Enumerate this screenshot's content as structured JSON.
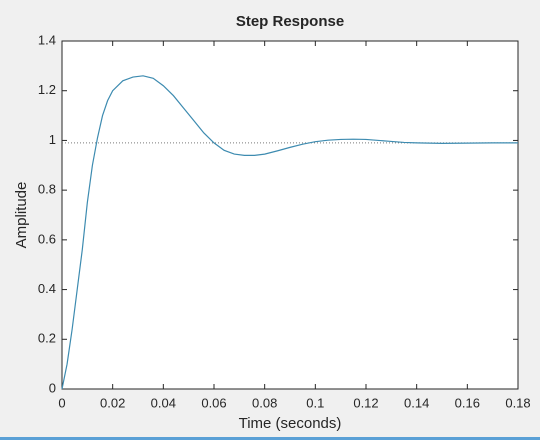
{
  "chart_data": {
    "type": "line",
    "title": "Step Response",
    "x_label": "Time (seconds)",
    "y_label": "Amplitude",
    "x": [
      0,
      0.002,
      0.004,
      0.006,
      0.008,
      0.01,
      0.012,
      0.014,
      0.016,
      0.018,
      0.02,
      0.024,
      0.028,
      0.032,
      0.036,
      0.04,
      0.044,
      0.048,
      0.052,
      0.056,
      0.06,
      0.064,
      0.068,
      0.072,
      0.076,
      0.08,
      0.085,
      0.09,
      0.095,
      0.1,
      0.105,
      0.11,
      0.115,
      0.12,
      0.125,
      0.13,
      0.135,
      0.14,
      0.15,
      0.16,
      0.17,
      0.18
    ],
    "series": [
      {
        "color": "#3d8bb0",
        "values": [
          0,
          0.1,
          0.24,
          0.4,
          0.56,
          0.75,
          0.9,
          1.01,
          1.1,
          1.16,
          1.2,
          1.24,
          1.255,
          1.26,
          1.25,
          1.22,
          1.18,
          1.13,
          1.08,
          1.03,
          0.99,
          0.96,
          0.945,
          0.94,
          0.94,
          0.945,
          0.958,
          0.972,
          0.985,
          0.995,
          1.001,
          1.004,
          1.005,
          1.004,
          1.0,
          0.996,
          0.992,
          0.99,
          0.988,
          0.989,
          0.99,
          0.99
        ]
      }
    ],
    "steady_state": 0.99,
    "xlim": [
      0,
      0.18
    ],
    "xticks": [
      0,
      0.02,
      0.04,
      0.06,
      0.08,
      0.1,
      0.12,
      0.14,
      0.16,
      0.18
    ],
    "ylim": [
      0,
      1.4
    ],
    "yticks": [
      0,
      0.2,
      0.4,
      0.6,
      0.8,
      1,
      1.2,
      1.4
    ],
    "grid": false
  }
}
